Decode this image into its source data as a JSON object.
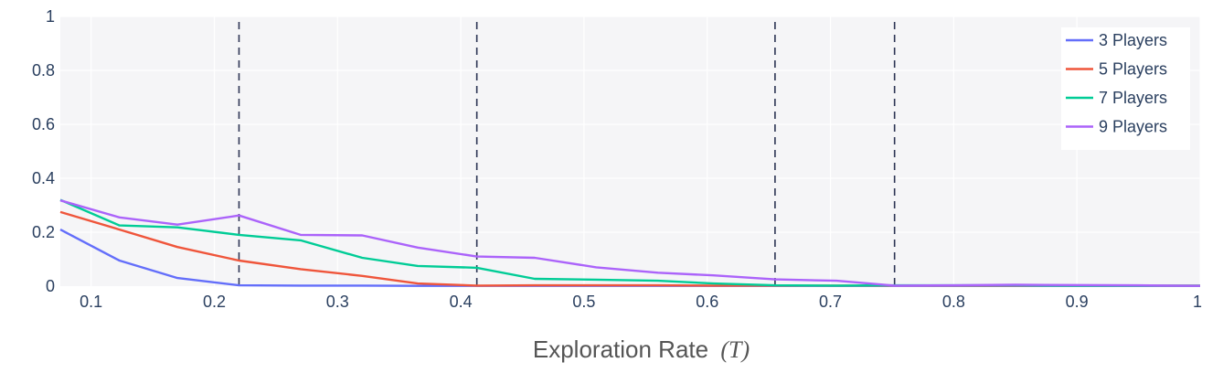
{
  "chart_data": {
    "type": "line",
    "title": "",
    "xlabel": "Exploration Rate",
    "xlabel_symbol": "(T)",
    "ylabel": "",
    "xlim": [
      0.075,
      1.0
    ],
    "ylim": [
      0,
      1
    ],
    "x_ticks": [
      {
        "value": 0.1,
        "label": "0.1"
      },
      {
        "value": 0.2,
        "label": "0.2"
      },
      {
        "value": 0.3,
        "label": "0.3"
      },
      {
        "value": 0.4,
        "label": "0.4"
      },
      {
        "value": 0.5,
        "label": "0.5"
      },
      {
        "value": 0.6,
        "label": "0.6"
      },
      {
        "value": 0.7,
        "label": "0.7"
      },
      {
        "value": 0.8,
        "label": "0.8"
      },
      {
        "value": 0.9,
        "label": "0.9"
      },
      {
        "value": 1.0,
        "label": "1"
      }
    ],
    "y_ticks": [
      {
        "value": 0,
        "label": "0"
      },
      {
        "value": 0.2,
        "label": "0.2"
      },
      {
        "value": 0.4,
        "label": "0.4"
      },
      {
        "value": 0.6,
        "label": "0.6"
      },
      {
        "value": 0.8,
        "label": "0.8"
      },
      {
        "value": 1,
        "label": "1"
      }
    ],
    "vlines": [
      0.22,
      0.413,
      0.655,
      0.752
    ],
    "legend_position": "top-right",
    "grid": true,
    "series": [
      {
        "name": "3 Players",
        "color": "#636efa",
        "x": [
          0.075,
          0.123,
          0.17,
          0.22,
          0.27,
          0.32,
          0.365,
          0.413,
          0.46,
          0.51,
          0.56,
          0.605,
          0.655,
          0.705,
          0.752,
          0.8,
          0.85,
          0.9,
          0.95,
          1.0
        ],
        "y": [
          0.21,
          0.095,
          0.03,
          0.003,
          0.002,
          0.002,
          0.001,
          0.001,
          0.001,
          0.001,
          0.001,
          0.001,
          0.001,
          0.001,
          0.001,
          0.001,
          0.001,
          0.001,
          0.001,
          0.001
        ]
      },
      {
        "name": "5 Players",
        "color": "#ef553b",
        "x": [
          0.075,
          0.123,
          0.17,
          0.22,
          0.27,
          0.32,
          0.365,
          0.413,
          0.46,
          0.51,
          0.56,
          0.605,
          0.655,
          0.705,
          0.752,
          0.8,
          0.85,
          0.9,
          0.95,
          1.0
        ],
        "y": [
          0.275,
          0.21,
          0.145,
          0.095,
          0.063,
          0.038,
          0.01,
          0.002,
          0.003,
          0.003,
          0.003,
          0.002,
          0.002,
          0.002,
          0.002,
          0.002,
          0.002,
          0.002,
          0.002,
          0.002
        ]
      },
      {
        "name": "7 Players",
        "color": "#00cc96",
        "x": [
          0.075,
          0.123,
          0.17,
          0.22,
          0.27,
          0.32,
          0.365,
          0.413,
          0.46,
          0.51,
          0.56,
          0.605,
          0.655,
          0.705,
          0.752,
          0.8,
          0.85,
          0.9,
          0.95,
          1.0
        ],
        "y": [
          0.32,
          0.225,
          0.218,
          0.19,
          0.17,
          0.105,
          0.075,
          0.068,
          0.027,
          0.024,
          0.02,
          0.01,
          0.003,
          0.002,
          0.003,
          0.003,
          0.003,
          0.002,
          0.002,
          0.002
        ]
      },
      {
        "name": "9 Players",
        "color": "#ab63fa",
        "x": [
          0.075,
          0.123,
          0.17,
          0.22,
          0.27,
          0.32,
          0.365,
          0.413,
          0.46,
          0.51,
          0.56,
          0.605,
          0.655,
          0.705,
          0.752,
          0.8,
          0.85,
          0.9,
          0.95,
          1.0
        ],
        "y": [
          0.318,
          0.255,
          0.228,
          0.262,
          0.19,
          0.188,
          0.143,
          0.11,
          0.105,
          0.07,
          0.05,
          0.04,
          0.025,
          0.02,
          0.002,
          0.003,
          0.005,
          0.004,
          0.003,
          0.001
        ]
      }
    ]
  }
}
